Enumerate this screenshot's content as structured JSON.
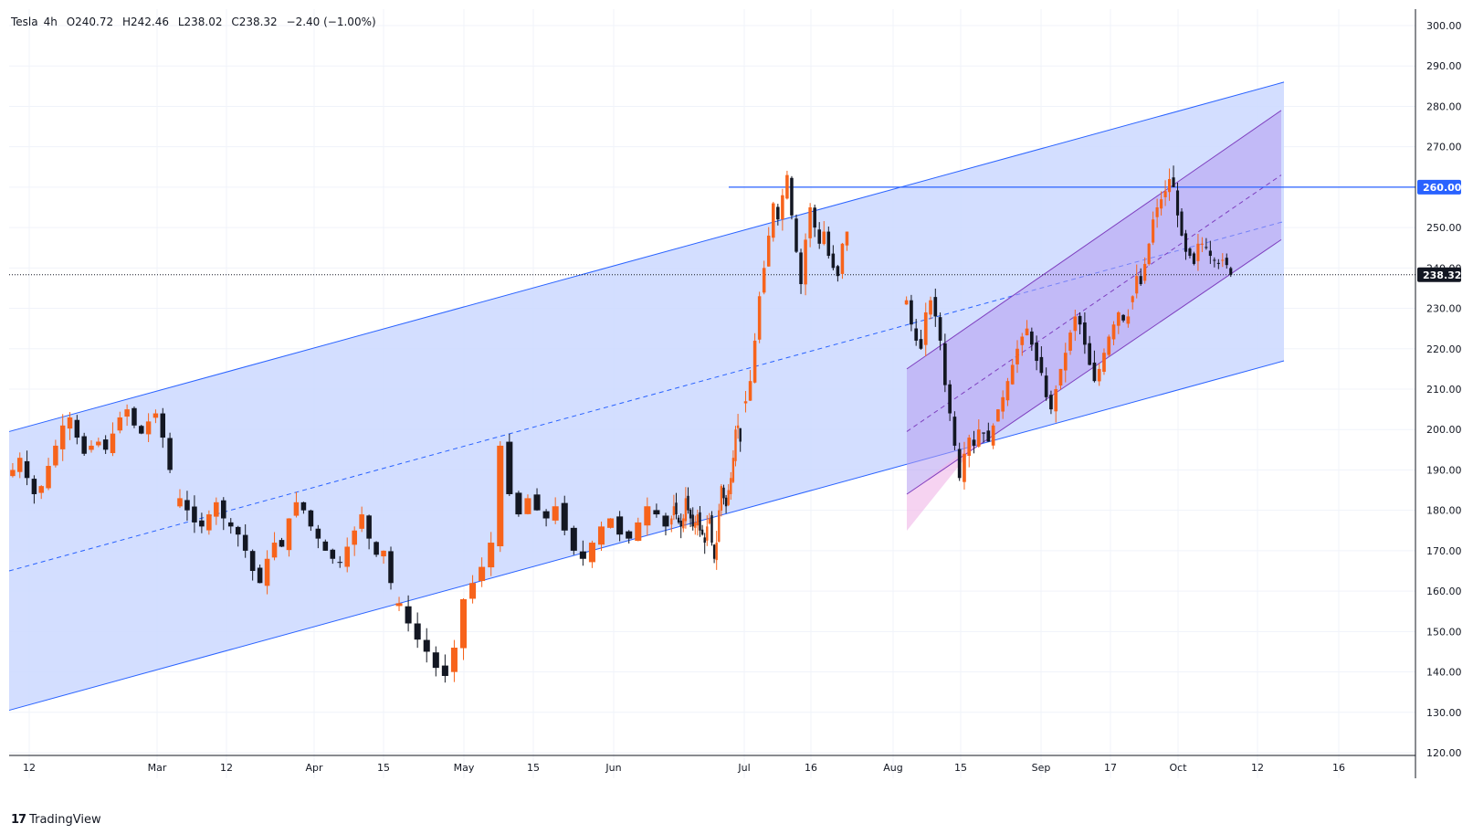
{
  "header": {
    "symbol": "Tesla",
    "interval": "4h",
    "open": "O240.72",
    "high": "H242.46",
    "low": "L238.02",
    "close": "C238.32",
    "change": "−2.40 (−1.00%)"
  },
  "branding": {
    "name": "TradingView",
    "icon": "tradingview-logo-icon"
  },
  "colors": {
    "up": "#f7631b",
    "down": "#131722",
    "channel_blue": "#2962ff",
    "channel_fill": "#cbd8ff",
    "purple": "#7e3fbf",
    "purple_fill": "#b49cf0"
  },
  "chart_data": {
    "type": "candlestick",
    "title": "",
    "xlabel": "",
    "ylabel": "",
    "ylim": [
      113,
      303
    ],
    "y_ticks": [
      "120.00",
      "130.00",
      "140.00",
      "150.00",
      "160.00",
      "170.00",
      "180.00",
      "190.00",
      "200.00",
      "210.00",
      "220.00",
      "230.00",
      "240.00",
      "250.00",
      "260.00",
      "270.00",
      "280.00",
      "290.00",
      "300.00"
    ],
    "x_ticks": [
      "12",
      "Mar",
      "12",
      "Apr",
      "15",
      "May",
      "15",
      "Jun",
      "Jul",
      "16",
      "Aug",
      "15",
      "Sep",
      "17",
      "Oct",
      "12",
      "16"
    ],
    "price_labels": [
      {
        "text": "260.00",
        "value": 260,
        "kind": "level"
      },
      {
        "text": "238.32",
        "value": 238.32,
        "kind": "last"
      }
    ],
    "horizontal_level": 260,
    "last_price": 238.32,
    "series": [
      {
        "period": "Feb",
        "close": [
          190,
          193,
          188,
          184,
          186,
          191,
          196,
          201,
          203,
          198,
          194,
          196,
          197,
          195,
          199,
          203,
          205,
          201,
          199,
          202,
          204,
          198,
          190
        ]
      },
      {
        "period": "Mar",
        "close": [
          183,
          180,
          177,
          176,
          179,
          182,
          178,
          176,
          174,
          170,
          165,
          162,
          168,
          172,
          171,
          178,
          182,
          180,
          176,
          173,
          170,
          168,
          167,
          171,
          175,
          179,
          173,
          169,
          170,
          162
        ]
      },
      {
        "period": "Apr",
        "close": [
          157,
          152,
          148,
          145,
          141,
          139,
          146,
          158,
          162,
          166,
          172,
          196,
          184,
          179,
          183,
          180,
          178,
          181,
          175,
          170,
          168,
          172,
          176,
          178,
          174,
          173,
          177,
          181,
          179,
          176
        ]
      },
      {
        "period": "May",
        "close": [
          178,
          181,
          179,
          177,
          176,
          178,
          183,
          180,
          178,
          176,
          177,
          179,
          175,
          174,
          172,
          176,
          178,
          172,
          168,
          172,
          180,
          186,
          183,
          181,
          185,
          188,
          193,
          200,
          201,
          197
        ]
      },
      {
        "period": "Jul",
        "close": [
          207,
          212,
          222,
          233,
          240,
          248,
          256,
          252,
          258,
          263,
          253,
          244,
          236,
          247,
          255,
          250,
          246,
          249,
          243,
          240,
          238,
          246,
          249
        ]
      },
      {
        "period": "Aug",
        "close": [
          232,
          226,
          222,
          220,
          229,
          232,
          228,
          222,
          211,
          204,
          196,
          188,
          194,
          198,
          196,
          200,
          199,
          197,
          201,
          205,
          208,
          212,
          216,
          220,
          223,
          225,
          221,
          217,
          214,
          208,
          205,
          210,
          215,
          219,
          224,
          228,
          226,
          221,
          216,
          212,
          215,
          219,
          223,
          226,
          229,
          227,
          228
        ]
      },
      {
        "period": "Sep",
        "close": [
          233,
          238,
          236,
          241,
          246,
          252,
          255,
          257,
          259,
          262,
          260,
          253,
          248,
          244,
          243,
          241,
          246,
          246,
          245,
          243,
          242,
          241,
          242,
          240.72,
          238.32
        ]
      }
    ],
    "annotations": [
      {
        "kind": "parallel_channel",
        "color": "blue",
        "upper": [
          [
            0,
            199.5
          ],
          [
            1,
            286
          ]
        ],
        "lower": [
          [
            0,
            130.5
          ],
          [
            1,
            217
          ]
        ]
      },
      {
        "kind": "parallel_channel",
        "color": "purple",
        "upper": [
          [
            0,
            215
          ],
          [
            1,
            279
          ]
        ],
        "lower": [
          [
            0,
            184
          ],
          [
            1,
            247
          ]
        ]
      }
    ]
  }
}
